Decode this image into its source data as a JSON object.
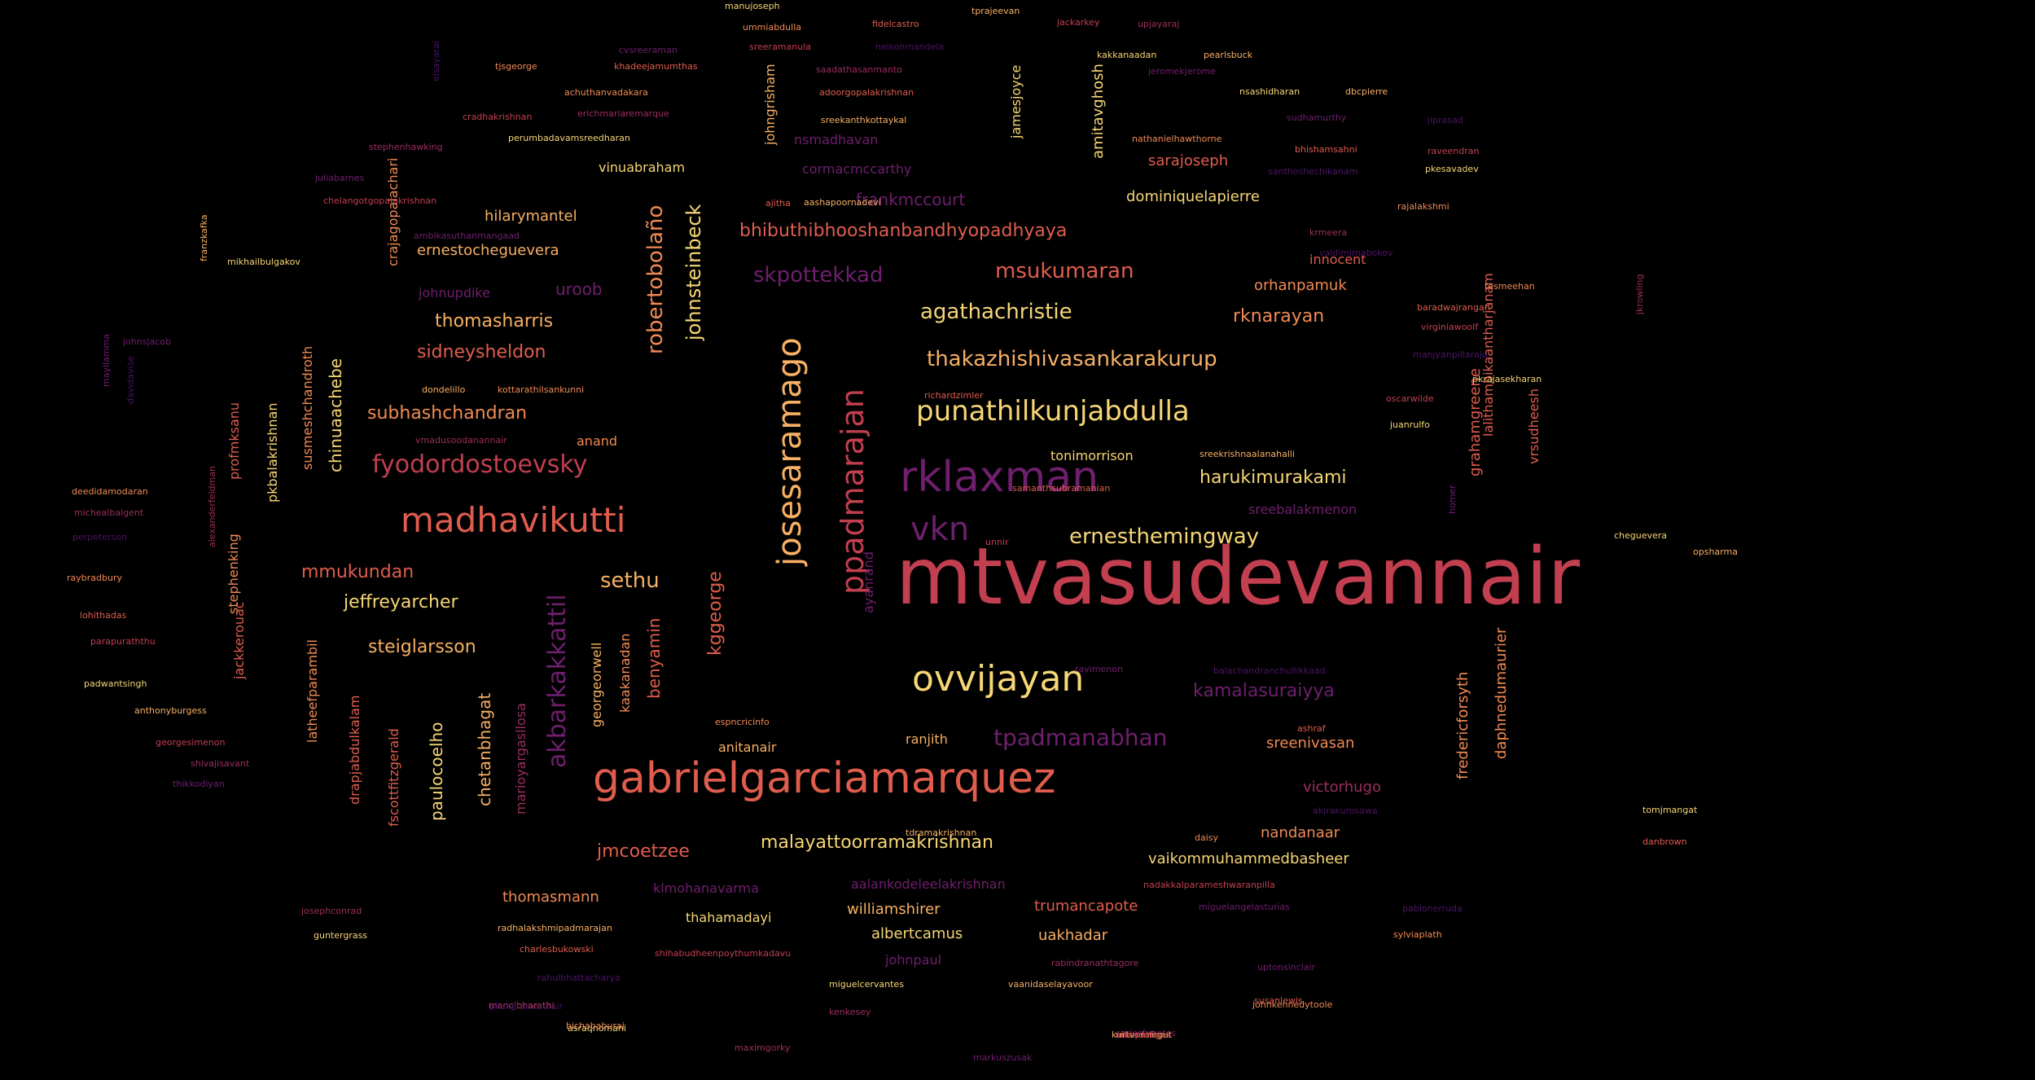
{
  "palette": {
    "c1": "#f6d675",
    "c2": "#f7b064",
    "c3": "#f18a54",
    "c4": "#e05d4e",
    "c5": "#c23f50",
    "c6": "#9c2d5e",
    "c7": "#6f1f6e",
    "c8": "#4b1466"
  },
  "words": [
    {
      "t": "mtvasudevannair",
      "c": "c5"
    },
    {
      "t": "gabrielgarciamarquez",
      "c": "c4"
    },
    {
      "t": "rklaxman",
      "c": "c7"
    },
    {
      "t": "madhavikutti",
      "c": "c4"
    },
    {
      "t": "josesaramago",
      "c": "c2"
    },
    {
      "t": "ppadmarajan",
      "c": "c5"
    },
    {
      "t": "punathilkunjabdulla",
      "c": "c1"
    },
    {
      "t": "ovvijayan",
      "c": "c1"
    },
    {
      "t": "fyodordostoevsky",
      "c": "c5"
    },
    {
      "t": "vkn",
      "c": "c7"
    },
    {
      "t": "ernesthemingway",
      "c": "c1"
    },
    {
      "t": "akbarkakkattil",
      "c": "c7"
    },
    {
      "t": "thakazhishivasankarakurup",
      "c": "c2"
    },
    {
      "t": "agathachristie",
      "c": "c1"
    },
    {
      "t": "tpadmanabhan",
      "c": "c7"
    },
    {
      "t": "skpottekkad",
      "c": "c7"
    },
    {
      "t": "msukumaran",
      "c": "c4"
    },
    {
      "t": "malayattoorramakrishnan",
      "c": "c1"
    },
    {
      "t": "bhibuthibhooshanbandhyopadhyaya",
      "c": "c4"
    },
    {
      "t": "robertobolaño",
      "c": "c3"
    },
    {
      "t": "johnsteinbeck",
      "c": "c1"
    },
    {
      "t": "sethu",
      "c": "c2"
    },
    {
      "t": "steiglarsson",
      "c": "c2"
    },
    {
      "t": "jeffreyarcher",
      "c": "c1"
    },
    {
      "t": "mmukundan",
      "c": "c4"
    },
    {
      "t": "subhashchandran",
      "c": "c3"
    },
    {
      "t": "sidneysheldon",
      "c": "c4"
    },
    {
      "t": "thomasharris",
      "c": "c2"
    },
    {
      "t": "kamalasuraiyya",
      "c": "c7"
    },
    {
      "t": "harukimurakami",
      "c": "c1"
    },
    {
      "t": "rknarayan",
      "c": "c3"
    },
    {
      "t": "jmcoetzee",
      "c": "c4"
    },
    {
      "t": "frankmccourt",
      "c": "c7"
    },
    {
      "t": "chinuaachebe",
      "c": "c1"
    },
    {
      "t": "kggeorge",
      "c": "c4"
    },
    {
      "t": "paulocoelho",
      "c": "c1"
    },
    {
      "t": "chetanbhagat",
      "c": "c2"
    },
    {
      "t": "benyamin",
      "c": "c4"
    },
    {
      "t": "uroob",
      "c": "c7"
    },
    {
      "t": "ernestocheguevera",
      "c": "c2"
    },
    {
      "t": "hilarymantel",
      "c": "c2"
    },
    {
      "t": "grahamgreene",
      "c": "c4"
    },
    {
      "t": "daphnedumaurier",
      "c": "c3"
    },
    {
      "t": "fredericforsyth",
      "c": "c3"
    },
    {
      "t": "amitavghosh",
      "c": "c1"
    },
    {
      "t": "dominiquelapierre",
      "c": "c1"
    },
    {
      "t": "vaikommuhammedbasheer",
      "c": "c1"
    },
    {
      "t": "sarajoseph",
      "c": "c4"
    },
    {
      "t": "orhanpamuk",
      "c": "c3"
    },
    {
      "t": "thomasmann",
      "c": "c3"
    },
    {
      "t": "albertcamus",
      "c": "c1"
    },
    {
      "t": "williamshirer",
      "c": "c2"
    },
    {
      "t": "trumancapote",
      "c": "c4"
    },
    {
      "t": "uakhadar",
      "c": "c2"
    },
    {
      "t": "sreenivasan",
      "c": "c3"
    },
    {
      "t": "nandanaar",
      "c": "c3"
    },
    {
      "t": "victorhugo",
      "c": "c6"
    },
    {
      "t": "tonimorrison",
      "c": "c1"
    },
    {
      "t": "jackkerouac",
      "c": "c4"
    },
    {
      "t": "stephenking",
      "c": "c3"
    },
    {
      "t": "latheefparambil",
      "c": "c3"
    },
    {
      "t": "drapjabdulkalam",
      "c": "c4"
    },
    {
      "t": "fscottfitzgerald",
      "c": "c4"
    },
    {
      "t": "marioyargasllosa",
      "c": "c6"
    },
    {
      "t": "georgeorwell",
      "c": "c2"
    },
    {
      "t": "kaakanadan",
      "c": "c3"
    },
    {
      "t": "anitanair",
      "c": "c2"
    },
    {
      "t": "ranjith",
      "c": "c2"
    },
    {
      "t": "thahamadayi",
      "c": "c1"
    },
    {
      "t": "johnpaul",
      "c": "c7"
    },
    {
      "t": "klmohanavarma",
      "c": "c7"
    },
    {
      "t": "aalankodeleelakrishnan",
      "c": "c7"
    },
    {
      "t": "vinuabraham",
      "c": "c1"
    },
    {
      "t": "crajagopalachari",
      "c": "c3"
    },
    {
      "t": "johnupdike",
      "c": "c7"
    },
    {
      "t": "anand",
      "c": "c3"
    },
    {
      "t": "profmksanu",
      "c": "c4"
    },
    {
      "t": "pkbalakrishnan",
      "c": "c1"
    },
    {
      "t": "susmeshchandroth",
      "c": "c3"
    },
    {
      "t": "innocent",
      "c": "c4"
    },
    {
      "t": "vrsudheesh",
      "c": "c4"
    },
    {
      "t": "lalithambikaantharjanam",
      "c": "c4"
    },
    {
      "t": "sreebalakmenon",
      "c": "c7"
    },
    {
      "t": "nsmadhavan",
      "c": "c7"
    },
    {
      "t": "cormacmccarthy",
      "c": "c7"
    },
    {
      "t": "jamesjoyce",
      "c": "c1"
    },
    {
      "t": "johngrisham",
      "c": "c2"
    },
    {
      "t": "ayanrand",
      "c": "c7"
    }
  ],
  "minor_words": [
    "manujoseph",
    "tprajeevan",
    "ummiabdulla",
    "fidelcastro",
    "jackarkey",
    "upjayaraj",
    "cvsreeraman",
    "nelsonmandela",
    "kakkanaadan",
    "pearlsbuck",
    "tjsgeorge",
    "khadeejamumthas",
    "sreeramanula",
    "saadathasanmanto",
    "jeromekjerome",
    "elsayarai",
    "nsashidharan",
    "dbcpierre",
    "achuthanvadakara",
    "adoorgopalakrishnan",
    "cradhakrishnan",
    "erichmariaremarque",
    "sudhamurthy",
    "jiprasad",
    "perumbadavamsreedharan",
    "sreekanthkottaykal",
    "nathanielhawthorne",
    "bhishamsahni",
    "raveendran",
    "stephenhawking",
    "juliabarnes",
    "santhoshechikanam",
    "pkesavadev",
    "aashapoornadevi",
    "rajalakshmi",
    "ajitha",
    "chelangotgopalakrishnan",
    "krmeera",
    "ambikasuthanmangaad",
    "valdimimabokov",
    "mikhailbulgakov",
    "franzkafka",
    "tesmeehan",
    "baradwajrangan",
    "virginiawoolf",
    "jkrowling",
    "johnsjacob",
    "manjyanpillaraju",
    "pkrajasekharan",
    "dondelillo",
    "kottarathilsankunni",
    "richardzimler",
    "oscarwilde",
    "vmadusoodanannair",
    "mayilamma",
    "davidavise",
    "juanrulfo",
    "sreekrishnaalanahalli",
    "deedidamodaran",
    "samanthsubramanian",
    "unnir",
    "micheaibaigent",
    "homer",
    "perpeterson",
    "cheguevera",
    "opsharma",
    "raybradbury",
    "lohithadas",
    "parapuraththu",
    "alexanderfeldman",
    "ravimenon",
    "balachandranchullikkaad",
    "padwantsingh",
    "anthonyburgess",
    "espncricinfo",
    "ashraf",
    "georgesimenon",
    "shivajisavant",
    "thikkodiyan",
    "akirakurosawa",
    "tomjmangat",
    "tdramakrishnan",
    "daisy",
    "danbrown",
    "nadakkalparameshwaranpilla",
    "josephconrad",
    "miguelangelasturias",
    "pablonerruda",
    "guntergrass",
    "radhalakshmipadmarajan",
    "sylviaplath",
    "charlesbukowski",
    "shihabudheenpoythumkadavu",
    "rabindranathtagore",
    "uptonsinclair",
    "rahulbhattacharya",
    "miguelcervantes",
    "vaanidaselayavoor",
    "johnkennedytoole",
    "susanlewis",
    "manojbharathi",
    "kenkesey",
    "carlosfuentes",
    "pkunjiramannair",
    "asraqnomani",
    "kurtvonnegut",
    "bichababuraj",
    "orlandofiges",
    "alanpaton",
    "maximgorky",
    "markuszusak"
  ]
}
